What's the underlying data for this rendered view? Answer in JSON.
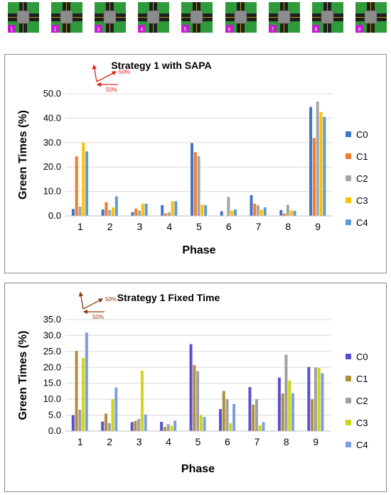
{
  "thumbnails": {
    "labels": [
      "1",
      "2",
      "3",
      "4",
      "5",
      "6",
      "7",
      "8",
      "9"
    ],
    "badge_color": "#c21fc9",
    "field_color": "#2e9a3a",
    "road_color": "#1e1e1e"
  },
  "chart_data": [
    {
      "type": "bar",
      "title": "Strategy 1 with SAPA",
      "xlabel": "Phase",
      "ylabel": "Green Times (%)",
      "categories": [
        "1",
        "2",
        "3",
        "4",
        "5",
        "6",
        "7",
        "8",
        "9"
      ],
      "ylim": [
        0,
        50
      ],
      "yticks": [
        "0.0",
        "10.0",
        "20.0",
        "30.0",
        "40.0",
        "50.0"
      ],
      "grid": true,
      "legend_position": "right",
      "annotation": {
        "label_top": "50%",
        "label_bottom": "50%",
        "color": "#e02020"
      },
      "series": [
        {
          "name": "C0",
          "color": "#4472c4",
          "values": [
            2.8,
            2.6,
            1.5,
            4.4,
            29.8,
            1.9,
            8.5,
            2.4,
            44.6
          ]
        },
        {
          "name": "C1",
          "color": "#ed7d31",
          "values": [
            24.4,
            5.6,
            3.0,
            1.0,
            26.1,
            0.0,
            5.0,
            1.0,
            31.9
          ]
        },
        {
          "name": "C2",
          "color": "#a5a5a5",
          "values": [
            3.8,
            2.4,
            2.2,
            1.5,
            24.5,
            7.8,
            4.3,
            4.5,
            46.8
          ]
        },
        {
          "name": "C3",
          "color": "#ffc000",
          "values": [
            30.0,
            3.5,
            5.0,
            6.0,
            4.6,
            2.2,
            2.5,
            2.2,
            42.5
          ]
        },
        {
          "name": "C4",
          "color": "#5b9bd5",
          "values": [
            26.4,
            8.0,
            5.0,
            6.0,
            4.4,
            2.6,
            3.5,
            2.1,
            40.5
          ]
        }
      ]
    },
    {
      "type": "bar",
      "title": "Strategy 1 Fixed Time",
      "xlabel": "Phase",
      "ylabel": "Green Times (%)",
      "categories": [
        "1",
        "2",
        "3",
        "4",
        "5",
        "6",
        "7",
        "8",
        "9"
      ],
      "ylim": [
        0,
        35
      ],
      "yticks": [
        "0.0",
        "5.0",
        "10.0",
        "15.0",
        "20.0",
        "25.0",
        "30.0",
        "35.0"
      ],
      "grid": true,
      "legend_position": "right",
      "annotation": {
        "label_top": "50%",
        "label_bottom": "50%",
        "color": "#8b3a0f"
      },
      "series": [
        {
          "name": "C0",
          "color": "#5a4fcf",
          "values": [
            5.0,
            3.0,
            2.8,
            2.9,
            27.3,
            6.9,
            13.8,
            16.8,
            20.1
          ]
        },
        {
          "name": "C1",
          "color": "#b08f38",
          "values": [
            25.2,
            5.5,
            3.2,
            1.3,
            20.7,
            12.6,
            8.3,
            11.8,
            10.0
          ]
        },
        {
          "name": "C2",
          "color": "#a0a0a0",
          "values": [
            6.7,
            2.5,
            3.8,
            2.2,
            18.8,
            10.0,
            10.0,
            24.0,
            20.0
          ]
        },
        {
          "name": "C3",
          "color": "#cdd616",
          "values": [
            23.0,
            10.0,
            19.0,
            1.7,
            5.0,
            2.5,
            1.8,
            15.9,
            19.8
          ]
        },
        {
          "name": "C4",
          "color": "#7b9fe0",
          "values": [
            30.9,
            13.7,
            5.2,
            3.3,
            4.4,
            8.5,
            2.8,
            11.9,
            18.2
          ]
        }
      ]
    }
  ]
}
